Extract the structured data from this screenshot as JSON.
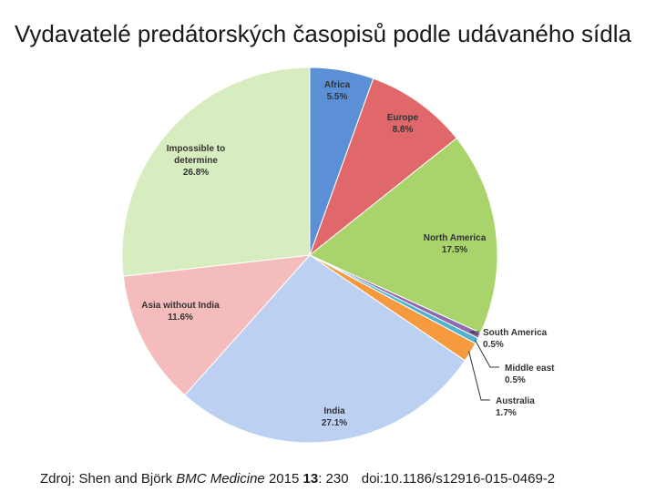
{
  "title": "Vydavatelé predátorských časopisů podle udávaného sídla",
  "citation": {
    "prefix": "Zdroj: Shen and Björk",
    "journal": "BMC Medicine",
    "year": "2015",
    "volume": "13",
    "pages": ": 230",
    "doi": "doi:10.1186/s12916-015-0469-2"
  },
  "chart_data": {
    "type": "pie",
    "title": "",
    "slices": [
      {
        "name": "Africa",
        "label": "5.5%",
        "value": 5.5,
        "color": "#5b8fd6"
      },
      {
        "name": "Europe",
        "label": "8.8%",
        "value": 8.8,
        "color": "#e0686a"
      },
      {
        "name": "North America",
        "label": "17.5%",
        "value": 17.5,
        "color": "#a9d46b"
      },
      {
        "name": "South America",
        "label": "0.5%",
        "value": 0.5,
        "color": "#8e6ab0"
      },
      {
        "name": "Middle east",
        "label": "0.5%",
        "value": 0.5,
        "color": "#4fb2d0"
      },
      {
        "name": "Australia",
        "label": "1.7%",
        "value": 1.7,
        "color": "#f59a3e"
      },
      {
        "name": "India",
        "label": "27.1%",
        "value": 27.1,
        "color": "#bcd1f2"
      },
      {
        "name": "Asia without India",
        "label": "11.6%",
        "value": 11.6,
        "color": "#f4bcbc"
      },
      {
        "name": "Impossible to determine",
        "label": "26.8%",
        "value": 26.8,
        "color": "#d8edbf"
      }
    ],
    "legend": "none"
  }
}
